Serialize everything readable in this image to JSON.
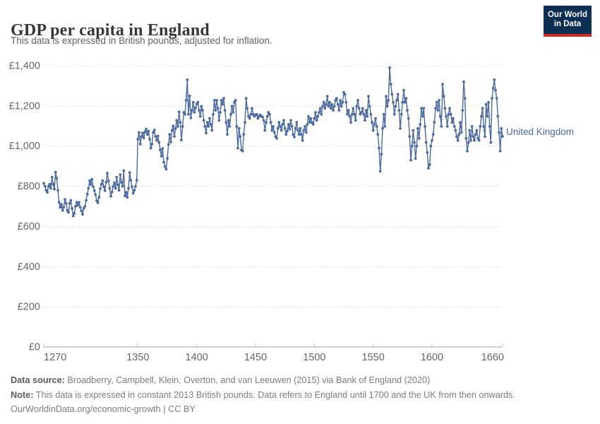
{
  "header": {
    "title": "GDP per capita in England",
    "subtitle": "This data is expressed in British pounds, adjusted for inflation.",
    "logo": {
      "line1": "Our World",
      "line2": "in Data",
      "bg_color": "#0C2E52",
      "bar_color": "#D12D24"
    }
  },
  "chart_data": {
    "type": "line",
    "title": "GDP per capita in England",
    "series_label": "United Kingdom",
    "line_color": "#4C6A9F",
    "axis_text_color": "#666666",
    "grid": "dashed-horizontal",
    "legend_position": "end-of-line",
    "xlim": [
      1270,
      1660
    ],
    "ylim": [
      0,
      1400
    ],
    "x_ticks": [
      1270,
      1350,
      1400,
      1450,
      1500,
      1550,
      1600,
      1660
    ],
    "y_ticks": [
      0,
      200,
      400,
      600,
      800,
      1000,
      1200,
      1400
    ],
    "y_tick_labels": [
      "£0",
      "£200",
      "£400",
      "£600",
      "£800",
      "£1,000",
      "£1,200",
      "£1,400"
    ],
    "ylabel": "",
    "xlabel": "",
    "start_year": 1270,
    "values": [
      815,
      800,
      780,
      770,
      800,
      810,
      790,
      845,
      810,
      785,
      870,
      840,
      780,
      720,
      695,
      710,
      680,
      695,
      735,
      715,
      680,
      670,
      715,
      730,
      690,
      652,
      665,
      700,
      720,
      705,
      720,
      695,
      678,
      660,
      690,
      700,
      730,
      760,
      790,
      828,
      808,
      835,
      798,
      778,
      758,
      728,
      718,
      745,
      788,
      810,
      828,
      798,
      778,
      820,
      865,
      828,
      790,
      750,
      772,
      800,
      818,
      790,
      845,
      808,
      780,
      858,
      820,
      800,
      878,
      752,
      770,
      745,
      790,
      868,
      830,
      798,
      765,
      780,
      800,
      830,
      1035,
      1068,
      1010,
      1048,
      1065,
      1040,
      1070,
      1085,
      1058,
      1075,
      1035,
      990,
      1010,
      1068,
      1080,
      1048,
      1028,
      1050,
      1018,
      980,
      950,
      988,
      920,
      898,
      885,
      938,
      1008,
      1058,
      1020,
      1078,
      1100,
      1048,
      1088,
      1128,
      1098,
      1170,
      1118,
      1030,
      1098,
      1168,
      1158,
      1228,
      1330,
      1158,
      1250,
      1140,
      1178,
      1218,
      1168,
      1190,
      1210,
      1218,
      1178,
      1148,
      1198,
      1178,
      1128,
      1098,
      1065,
      1118,
      1098,
      1138,
      1108,
      1078,
      1158,
      1228,
      1178,
      1228,
      1188,
      1128,
      1168,
      1228,
      1208,
      1238,
      1178,
      1118,
      1058,
      1128,
      1098,
      1158,
      1198,
      1168,
      1218,
      1228,
      1098,
      990,
      1088,
      1048,
      980,
      975,
      1058,
      1118,
      1238,
      1188,
      1148,
      1138,
      1158,
      1188,
      1158,
      1148,
      1155,
      1158,
      1138,
      1148,
      1155,
      1148,
      1145,
      1128,
      1078,
      1118,
      1148,
      1168,
      1158,
      1118,
      1078,
      1098,
      1068,
      1048,
      1038,
      1088,
      1118,
      1098,
      1078,
      1108,
      1128,
      1088,
      1058,
      1075,
      1108,
      1085,
      1128,
      1098,
      1058,
      1045,
      1088,
      1118,
      1078,
      1058,
      1088,
      1058,
      1028,
      1078,
      1098,
      1068,
      1108,
      1148,
      1118,
      1138,
      1118,
      1108,
      1138,
      1168,
      1128,
      1148,
      1168,
      1188,
      1158,
      1198,
      1218,
      1188,
      1208,
      1248,
      1198,
      1218,
      1188,
      1208,
      1178,
      1198,
      1228,
      1238,
      1208,
      1178,
      1228,
      1198,
      1218,
      1268,
      1258,
      1218,
      1158,
      1178,
      1148,
      1118,
      1158,
      1188,
      1158,
      1128,
      1198,
      1228,
      1188,
      1158,
      1168,
      1188,
      1158,
      1128,
      1178,
      1148,
      1248,
      1198,
      1158,
      1118,
      1078,
      1108,
      1138,
      1098,
      1058,
      990,
      875,
      960,
      1088,
      1158,
      1098,
      1248,
      1198,
      1228,
      1390,
      1308,
      1258,
      1218,
      1158,
      1198,
      1228,
      1258,
      1178,
      1088,
      1158,
      1218,
      1278,
      1218,
      1238,
      1178,
      1138,
      1048,
      930,
      1000,
      1078,
      1018,
      938,
      1000,
      1088,
      1038,
      1108,
      1188,
      1148,
      1188,
      1098,
      1018,
      968,
      890,
      908,
      1000,
      1028,
      1058,
      1118,
      1188,
      1218,
      1178,
      1228,
      1148,
      1098,
      1308,
      1248,
      1188,
      1148,
      1098,
      1158,
      1188,
      1158,
      1118,
      1138,
      1098,
      1078,
      1048,
      1028,
      1058,
      1118,
      1068,
      1178,
      1320,
      1238,
      1038,
      975,
      1018,
      1078,
      1028,
      1098,
      1048,
      1028,
      1058,
      1078,
      1038,
      1028,
      1098,
      1148,
      1188,
      1098,
      1048,
      1208,
      1148,
      1218,
      1098,
      1018,
      1238,
      1288,
      1330,
      1278,
      1238,
      1148,
      1068,
      975,
      1088,
      1048
    ]
  },
  "footer": {
    "source_label": "Data source:",
    "source_text": " Broadberry, Campbell, Klein, Overton, and van Leeuwen (2015) via Bank of England (2020)",
    "note_label": "Note:",
    "note_text": " This data is expressed in constant 2013 British pounds. Data refers to England until 1700 and the UK from then onwards.",
    "url_line": "OurWorldinData.org/economic-growth | CC BY"
  }
}
